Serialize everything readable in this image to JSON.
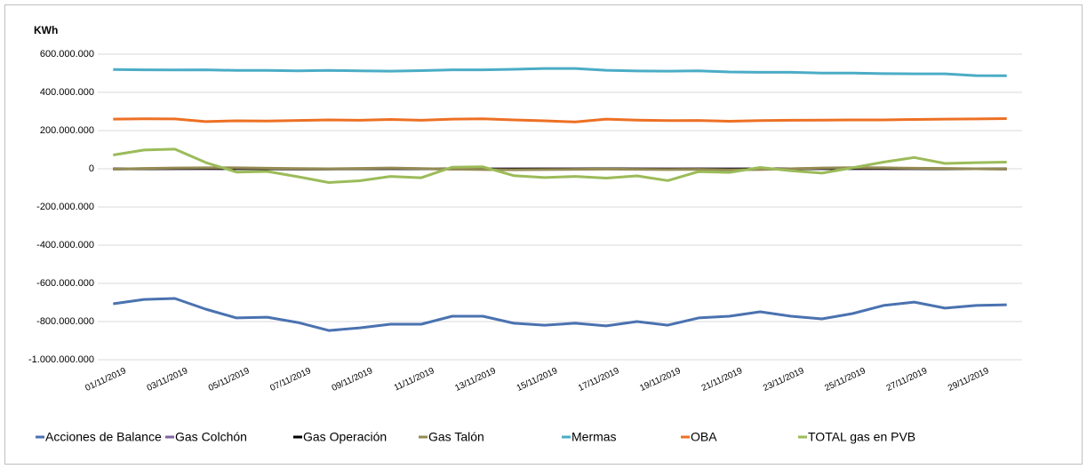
{
  "chart_data": {
    "type": "line",
    "y_label": "KWh",
    "categories": [
      "01/11/2019",
      null,
      "03/11/2019",
      null,
      "05/11/2019",
      null,
      "07/11/2019",
      null,
      "09/11/2019",
      null,
      "11/11/2019",
      null,
      "13/11/2019",
      null,
      "15/11/2019",
      null,
      "17/11/2019",
      null,
      "19/11/2019",
      null,
      "21/11/2019",
      null,
      "23/11/2019",
      null,
      "25/11/2019",
      null,
      "27/11/2019",
      null,
      "29/11/2019",
      null
    ],
    "ylim": [
      -1000000000,
      600000000
    ],
    "yticks": [
      {
        "value": -1000000000,
        "label": "-1.000.000.000"
      },
      {
        "value": -800000000,
        "label": "-800.000.000"
      },
      {
        "value": -600000000,
        "label": "-600.000.000"
      },
      {
        "value": -400000000,
        "label": "-400.000.000"
      },
      {
        "value": -200000000,
        "label": "-200.000.000"
      },
      0,
      {
        "value": 200000000,
        "label": "200.000.000"
      },
      {
        "value": 400000000,
        "label": "400.000.000"
      },
      {
        "value": 600000000,
        "label": "600.000.000"
      }
    ],
    "grid": true,
    "legend": "bottom",
    "series": [
      {
        "name": "Acciones de Balance",
        "color": "#4a72b0",
        "values": [
          -707000000,
          -684000000,
          -679000000,
          -735000000,
          -781000000,
          -777000000,
          -805000000,
          -847000000,
          -833000000,
          -814000000,
          -814000000,
          -772000000,
          -772000000,
          -809000000,
          -819000000,
          -809000000,
          -823000000,
          -800000000,
          -819000000,
          -781000000,
          -772000000,
          -749000000,
          -772000000,
          -786000000,
          -758000000,
          -716000000,
          -698000000,
          -730000000,
          -716000000,
          -712000000
        ]
      },
      {
        "name": "Gas Colchón",
        "color": "#8064a2",
        "values": [
          0,
          0,
          0,
          0,
          0,
          0,
          0,
          0,
          0,
          0,
          0,
          0,
          0,
          0,
          0,
          0,
          0,
          0,
          0,
          0,
          0,
          0,
          0,
          0,
          0,
          0,
          0,
          0,
          0,
          0
        ]
      },
      {
        "name": "Gas Operación",
        "color": "#000000",
        "values": [
          -1000000,
          0,
          1000000,
          2000000,
          1000000,
          0,
          -1000000,
          -1000000,
          0,
          1000000,
          0,
          -1000000,
          -2000000,
          -2000000,
          -1000000,
          -1000000,
          0,
          -1000000,
          -2000000,
          -1000000,
          -2000000,
          -1000000,
          0,
          1000000,
          2000000,
          2000000,
          1000000,
          0,
          0,
          -1000000
        ]
      },
      {
        "name": "Gas Talón",
        "color": "#948a54",
        "values": [
          -2000000,
          2000000,
          4000000,
          5000000,
          5000000,
          3000000,
          1000000,
          0,
          2000000,
          4000000,
          1000000,
          -2000000,
          -4000000,
          -5000000,
          -4000000,
          -3000000,
          -2000000,
          -3000000,
          -4000000,
          -3000000,
          -5000000,
          -4000000,
          0,
          4000000,
          6000000,
          5000000,
          3000000,
          2000000,
          0,
          -1000000
        ]
      },
      {
        "name": "Mermas",
        "color": "#4bacc6",
        "values": [
          520000000,
          518000000,
          517000000,
          518000000,
          515000000,
          515000000,
          513000000,
          515000000,
          513000000,
          511000000,
          514000000,
          518000000,
          518000000,
          521000000,
          525000000,
          525000000,
          516000000,
          512000000,
          511000000,
          513000000,
          507000000,
          505000000,
          505000000,
          501000000,
          501000000,
          498000000,
          497000000,
          497000000,
          488000000,
          487000000
        ]
      },
      {
        "name": "OBA",
        "color": "#ed7024",
        "values": [
          260000000,
          262000000,
          261000000,
          247000000,
          251000000,
          250000000,
          253000000,
          256000000,
          254000000,
          258000000,
          254000000,
          260000000,
          262000000,
          256000000,
          251000000,
          245000000,
          260000000,
          255000000,
          252000000,
          253000000,
          249000000,
          252000000,
          254000000,
          255000000,
          256000000,
          256000000,
          258000000,
          260000000,
          261000000,
          263000000
        ]
      },
      {
        "name": "TOTAL gas en PVB",
        "color": "#9bbb59",
        "values": [
          72000000,
          98000000,
          103000000,
          33000000,
          -17000000,
          -14000000,
          -42000000,
          -72000000,
          -63000000,
          -40000000,
          -47000000,
          8000000,
          10000000,
          -36000000,
          -46000000,
          -40000000,
          -49000000,
          -37000000,
          -62000000,
          -15000000,
          -19000000,
          7000000,
          -10000000,
          -23000000,
          5000000,
          35000000,
          59000000,
          28000000,
          32000000,
          35000000
        ]
      }
    ]
  }
}
